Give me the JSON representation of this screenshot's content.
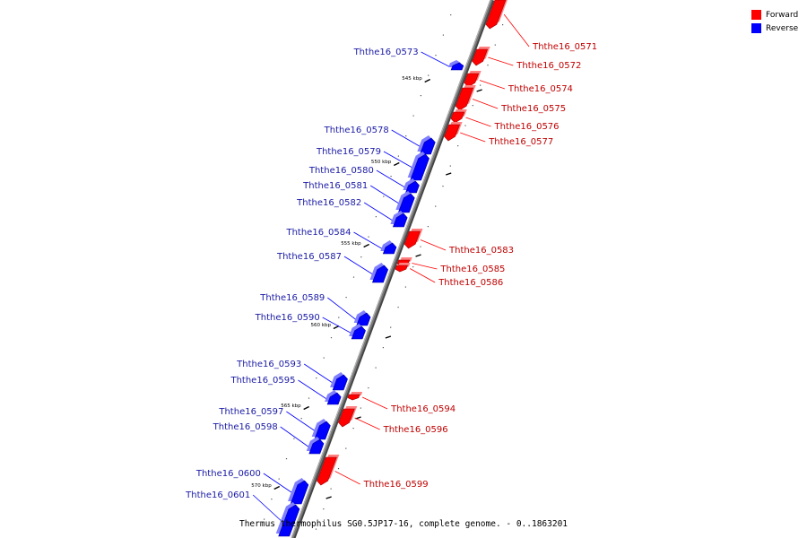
{
  "legend": {
    "items": [
      {
        "label": "Forward",
        "color": "#ff0000"
      },
      {
        "label": "Reverse",
        "color": "#0000ff"
      }
    ]
  },
  "caption": "Thermus thermophilus SG0.5JP17-16, complete genome. - 0..1863201",
  "colors": {
    "forward": "#ff0000",
    "reverse": "#0000ff",
    "backbone": "#777777"
  },
  "ticks": [
    "545 kbp",
    "550 kbp",
    "555 kbp",
    "560 kbp",
    "565 kbp",
    "570 kbp"
  ],
  "genes": [
    {
      "id": "Ththe16_0571",
      "strand": "forward"
    },
    {
      "id": "Ththe16_0572",
      "strand": "forward"
    },
    {
      "id": "Ththe16_0573",
      "strand": "reverse"
    },
    {
      "id": "Ththe16_0574",
      "strand": "forward"
    },
    {
      "id": "Ththe16_0575",
      "strand": "forward"
    },
    {
      "id": "Ththe16_0576",
      "strand": "forward"
    },
    {
      "id": "Ththe16_0577",
      "strand": "forward"
    },
    {
      "id": "Ththe16_0578",
      "strand": "reverse"
    },
    {
      "id": "Ththe16_0579",
      "strand": "reverse"
    },
    {
      "id": "Ththe16_0580",
      "strand": "reverse"
    },
    {
      "id": "Ththe16_0581",
      "strand": "reverse"
    },
    {
      "id": "Ththe16_0582",
      "strand": "reverse"
    },
    {
      "id": "Ththe16_0583",
      "strand": "forward"
    },
    {
      "id": "Ththe16_0584",
      "strand": "reverse"
    },
    {
      "id": "Ththe16_0585",
      "strand": "forward"
    },
    {
      "id": "Ththe16_0586",
      "strand": "forward"
    },
    {
      "id": "Ththe16_0587",
      "strand": "reverse"
    },
    {
      "id": "Ththe16_0589",
      "strand": "reverse"
    },
    {
      "id": "Ththe16_0590",
      "strand": "reverse"
    },
    {
      "id": "Ththe16_0593",
      "strand": "reverse"
    },
    {
      "id": "Ththe16_0594",
      "strand": "forward"
    },
    {
      "id": "Ththe16_0595",
      "strand": "reverse"
    },
    {
      "id": "Ththe16_0596",
      "strand": "forward"
    },
    {
      "id": "Ththe16_0597",
      "strand": "reverse"
    },
    {
      "id": "Ththe16_0598",
      "strand": "reverse"
    },
    {
      "id": "Ththe16_0599",
      "strand": "forward"
    },
    {
      "id": "Ththe16_0600",
      "strand": "reverse"
    },
    {
      "id": "Ththe16_0601",
      "strand": "reverse"
    }
  ]
}
